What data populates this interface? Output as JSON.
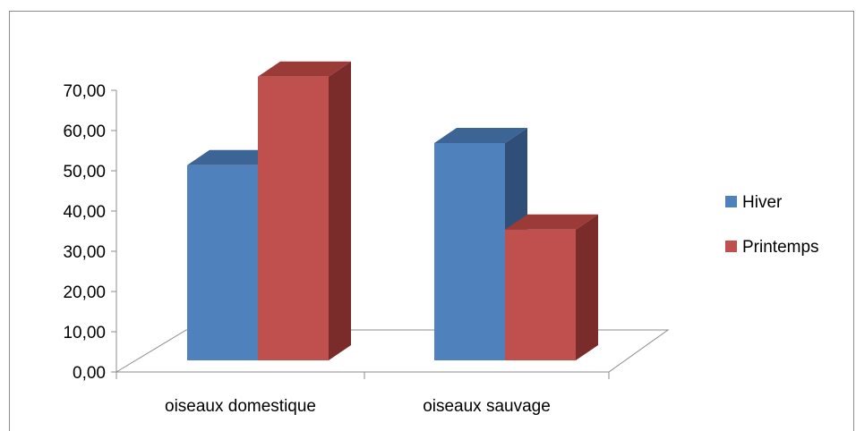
{
  "chart_data": {
    "type": "bar",
    "title": "",
    "xlabel": "",
    "ylabel": "",
    "categories": [
      "oiseaux domestique",
      "oiseaux sauvage"
    ],
    "series": [
      {
        "name": "Hiver",
        "values": [
          48.5,
          54.0
        ],
        "color": "#4f81bd",
        "top_color": "#3c6494",
        "side_color": "#2f4f78"
      },
      {
        "name": "Printemps",
        "values": [
          70.5,
          32.5
        ],
        "color": "#c0504d",
        "top_color": "#9b3b38",
        "side_color": "#7a2c2a"
      }
    ],
    "ylim": [
      0,
      70
    ],
    "yticks": [
      "0,00",
      "10,00",
      "20,00",
      "30,00",
      "40,00",
      "50,00",
      "60,00",
      "70,00"
    ],
    "ytick_values": [
      0,
      10,
      20,
      30,
      40,
      50,
      60,
      70
    ],
    "grid": false,
    "legend_position": "right"
  }
}
